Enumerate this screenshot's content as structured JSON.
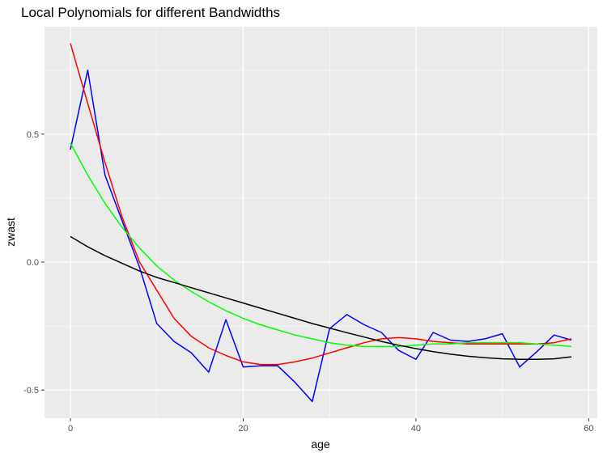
{
  "chart_data": {
    "type": "line",
    "title": "Local Polynomials for different Bandwidths",
    "xlabel": "age",
    "ylabel": "zwast",
    "xlim": [
      -3,
      61
    ],
    "ylim": [
      -0.61,
      0.92
    ],
    "x_ticks": [
      0,
      20,
      40,
      60
    ],
    "x_tick_labels": [
      "0",
      "20",
      "40",
      "60"
    ],
    "y_ticks": [
      -0.5,
      0.0,
      0.5
    ],
    "y_tick_labels": [
      "-0.5",
      "0.0",
      "0.5"
    ],
    "grid": true,
    "background": "#ebebeb",
    "legend": "none",
    "series": [
      {
        "color": "#0000ff",
        "x": [
          0,
          2,
          4,
          6,
          8,
          10,
          12,
          14,
          16,
          18,
          20,
          22,
          24,
          26,
          28,
          30,
          32,
          34,
          36,
          38,
          40,
          42,
          44,
          46,
          48,
          50,
          52,
          54,
          56,
          58
        ],
        "y": [
          0.44,
          0.75,
          0.34,
          0.16,
          -0.02,
          -0.24,
          -0.31,
          -0.355,
          -0.43,
          -0.225,
          -0.41,
          -0.405,
          -0.405,
          -0.47,
          -0.545,
          -0.26,
          -0.205,
          -0.245,
          -0.275,
          -0.345,
          -0.38,
          -0.275,
          -0.305,
          -0.31,
          -0.3,
          -0.28,
          -0.41,
          -0.35,
          -0.285,
          -0.305
        ]
      },
      {
        "color": "#ff0000",
        "x": [
          0,
          2,
          4,
          6,
          8,
          10,
          12,
          14,
          16,
          18,
          20,
          22,
          24,
          26,
          28,
          30,
          32,
          34,
          36,
          38,
          40,
          42,
          44,
          46,
          48,
          50,
          52,
          54,
          56,
          58
        ],
        "y": [
          0.855,
          0.62,
          0.39,
          0.175,
          0.0,
          -0.11,
          -0.22,
          -0.29,
          -0.335,
          -0.365,
          -0.39,
          -0.4,
          -0.4,
          -0.39,
          -0.375,
          -0.355,
          -0.335,
          -0.315,
          -0.3,
          -0.295,
          -0.3,
          -0.31,
          -0.315,
          -0.32,
          -0.32,
          -0.32,
          -0.32,
          -0.32,
          -0.315,
          -0.3
        ]
      },
      {
        "color": "#00ff00",
        "x": [
          0,
          2,
          4,
          6,
          8,
          10,
          12,
          14,
          16,
          18,
          20,
          22,
          24,
          26,
          28,
          30,
          32,
          34,
          36,
          38,
          40,
          42,
          44,
          46,
          48,
          50,
          52,
          54,
          56,
          58
        ],
        "y": [
          0.465,
          0.34,
          0.23,
          0.135,
          0.055,
          -0.015,
          -0.07,
          -0.115,
          -0.155,
          -0.19,
          -0.22,
          -0.245,
          -0.265,
          -0.285,
          -0.3,
          -0.315,
          -0.325,
          -0.33,
          -0.33,
          -0.33,
          -0.325,
          -0.32,
          -0.32,
          -0.315,
          -0.315,
          -0.315,
          -0.315,
          -0.32,
          -0.325,
          -0.33
        ]
      },
      {
        "color": "#000000",
        "x": [
          0,
          2,
          4,
          6,
          8,
          10,
          12,
          14,
          16,
          18,
          20,
          22,
          24,
          26,
          28,
          30,
          32,
          34,
          36,
          38,
          40,
          42,
          44,
          46,
          48,
          50,
          52,
          54,
          56,
          58
        ],
        "y": [
          0.1,
          0.06,
          0.025,
          -0.005,
          -0.035,
          -0.06,
          -0.08,
          -0.1,
          -0.12,
          -0.14,
          -0.16,
          -0.18,
          -0.2,
          -0.22,
          -0.24,
          -0.258,
          -0.276,
          -0.293,
          -0.31,
          -0.325,
          -0.338,
          -0.35,
          -0.36,
          -0.368,
          -0.374,
          -0.378,
          -0.38,
          -0.38,
          -0.378,
          -0.37
        ]
      }
    ]
  }
}
